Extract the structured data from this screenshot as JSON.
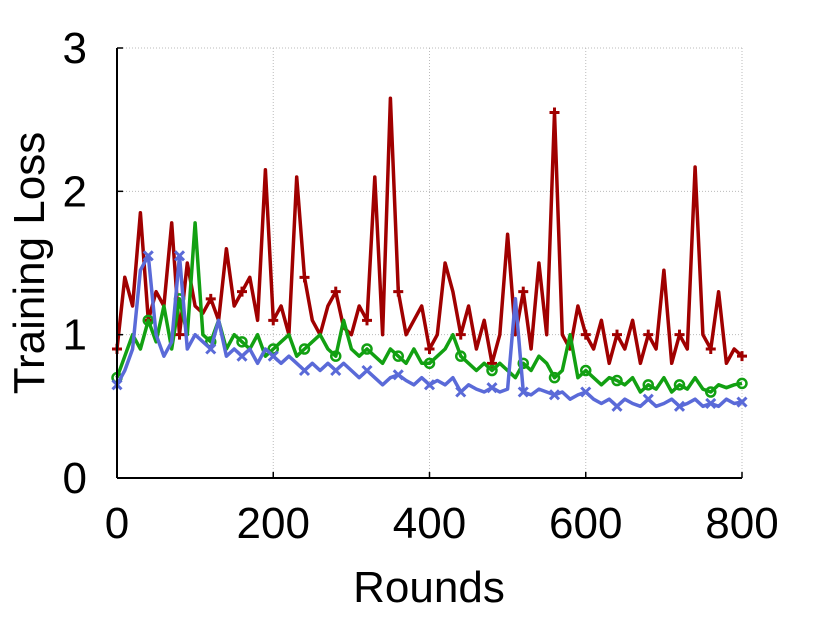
{
  "chart_data": {
    "type": "line",
    "title": "",
    "xlabel": "Rounds",
    "ylabel": "Training Loss",
    "xlim": [
      0,
      800
    ],
    "ylim": [
      0,
      3
    ],
    "xticks": [
      "0",
      "200",
      "400",
      "600",
      "800"
    ],
    "yticks": [
      "0",
      "1",
      "2",
      "3"
    ],
    "grid": true,
    "legend": "none",
    "series": [
      {
        "color": "#a00000",
        "marker": "plus",
        "x": [
          0,
          10,
          20,
          30,
          40,
          50,
          60,
          70,
          80,
          90,
          100,
          110,
          120,
          130,
          140,
          150,
          160,
          170,
          180,
          190,
          200,
          210,
          220,
          230,
          240,
          250,
          260,
          270,
          280,
          290,
          300,
          310,
          320,
          330,
          340,
          350,
          360,
          370,
          380,
          390,
          400,
          410,
          420,
          430,
          440,
          450,
          460,
          470,
          480,
          490,
          500,
          510,
          520,
          530,
          540,
          550,
          560,
          570,
          580,
          590,
          600,
          610,
          620,
          630,
          640,
          650,
          660,
          670,
          680,
          690,
          700,
          710,
          720,
          730,
          740,
          750,
          760,
          770,
          780,
          790,
          800
        ],
        "y": [
          0.9,
          1.4,
          1.2,
          1.85,
          1.1,
          1.3,
          1.2,
          1.78,
          1.0,
          1.5,
          1.2,
          1.15,
          1.25,
          1.1,
          1.6,
          1.2,
          1.3,
          1.4,
          1.1,
          2.15,
          1.1,
          1.2,
          1.0,
          2.1,
          1.4,
          1.1,
          1.0,
          1.2,
          1.3,
          1.05,
          1.0,
          1.2,
          1.1,
          2.1,
          1.0,
          2.65,
          1.3,
          1.0,
          1.1,
          1.2,
          0.9,
          1.0,
          1.5,
          1.3,
          1.0,
          1.2,
          0.9,
          1.1,
          0.8,
          1.0,
          1.7,
          1.0,
          1.3,
          0.9,
          1.5,
          1.0,
          2.55,
          1.0,
          0.9,
          1.2,
          1.0,
          0.9,
          1.1,
          0.8,
          1.0,
          0.9,
          1.1,
          0.8,
          1.0,
          0.9,
          1.45,
          0.8,
          1.0,
          0.9,
          2.17,
          1.0,
          0.9,
          1.3,
          0.8,
          0.9,
          0.85
        ]
      },
      {
        "color": "#12a012",
        "marker": "circle",
        "x": [
          0,
          10,
          20,
          30,
          40,
          50,
          60,
          70,
          80,
          90,
          100,
          110,
          120,
          130,
          140,
          150,
          160,
          170,
          180,
          190,
          200,
          210,
          220,
          230,
          240,
          250,
          260,
          270,
          280,
          290,
          300,
          310,
          320,
          330,
          340,
          350,
          360,
          370,
          380,
          390,
          400,
          410,
          420,
          430,
          440,
          450,
          460,
          470,
          480,
          490,
          500,
          510,
          520,
          530,
          540,
          550,
          560,
          570,
          580,
          590,
          600,
          610,
          620,
          630,
          640,
          650,
          660,
          670,
          680,
          690,
          700,
          710,
          720,
          730,
          740,
          750,
          760,
          770,
          780,
          790,
          800
        ],
        "y": [
          0.7,
          0.85,
          1.0,
          0.9,
          1.1,
          0.95,
          1.2,
          0.9,
          1.25,
          1.0,
          1.78,
          1.0,
          0.95,
          1.1,
          0.9,
          1.0,
          0.95,
          0.9,
          1.0,
          0.85,
          0.9,
          0.95,
          1.0,
          0.85,
          0.9,
          0.95,
          1.0,
          0.9,
          0.85,
          1.1,
          0.9,
          0.85,
          0.9,
          0.85,
          0.8,
          0.9,
          0.85,
          0.8,
          0.9,
          0.8,
          0.8,
          0.85,
          0.9,
          1.0,
          0.85,
          0.8,
          0.75,
          0.8,
          0.75,
          0.8,
          0.75,
          0.7,
          0.8,
          0.75,
          0.85,
          0.8,
          0.7,
          0.75,
          1.0,
          0.7,
          0.75,
          0.7,
          0.65,
          0.7,
          0.68,
          0.65,
          0.7,
          0.6,
          0.65,
          0.62,
          0.7,
          0.6,
          0.65,
          0.62,
          0.7,
          0.62,
          0.6,
          0.65,
          0.63,
          0.65,
          0.66
        ]
      },
      {
        "color": "#5a6ad8",
        "marker": "cross",
        "x": [
          0,
          10,
          20,
          30,
          40,
          50,
          60,
          70,
          80,
          90,
          100,
          110,
          120,
          130,
          140,
          150,
          160,
          170,
          180,
          190,
          200,
          210,
          220,
          230,
          240,
          250,
          260,
          270,
          280,
          290,
          300,
          310,
          320,
          330,
          340,
          350,
          360,
          370,
          380,
          390,
          400,
          410,
          420,
          430,
          440,
          450,
          460,
          470,
          480,
          490,
          500,
          510,
          520,
          530,
          540,
          550,
          560,
          570,
          580,
          590,
          600,
          610,
          620,
          630,
          640,
          650,
          660,
          670,
          680,
          690,
          700,
          710,
          720,
          730,
          740,
          750,
          760,
          770,
          780,
          790,
          800
        ],
        "y": [
          0.65,
          0.75,
          0.9,
          1.45,
          1.55,
          1.0,
          0.85,
          0.95,
          1.55,
          0.9,
          1.0,
          0.95,
          0.9,
          1.1,
          0.85,
          0.9,
          0.85,
          0.9,
          0.8,
          0.9,
          0.85,
          0.8,
          0.85,
          0.8,
          0.75,
          0.8,
          0.75,
          0.8,
          0.75,
          0.8,
          0.75,
          0.7,
          0.75,
          0.7,
          0.65,
          0.7,
          0.72,
          0.68,
          0.65,
          0.7,
          0.65,
          0.68,
          0.65,
          0.7,
          0.6,
          0.65,
          0.62,
          0.6,
          0.63,
          0.6,
          0.62,
          1.25,
          0.6,
          0.58,
          0.62,
          0.6,
          0.58,
          0.6,
          0.55,
          0.58,
          0.6,
          0.55,
          0.52,
          0.55,
          0.5,
          0.55,
          0.52,
          0.5,
          0.55,
          0.5,
          0.52,
          0.55,
          0.5,
          0.52,
          0.55,
          0.5,
          0.52,
          0.5,
          0.55,
          0.52,
          0.53
        ]
      }
    ]
  }
}
